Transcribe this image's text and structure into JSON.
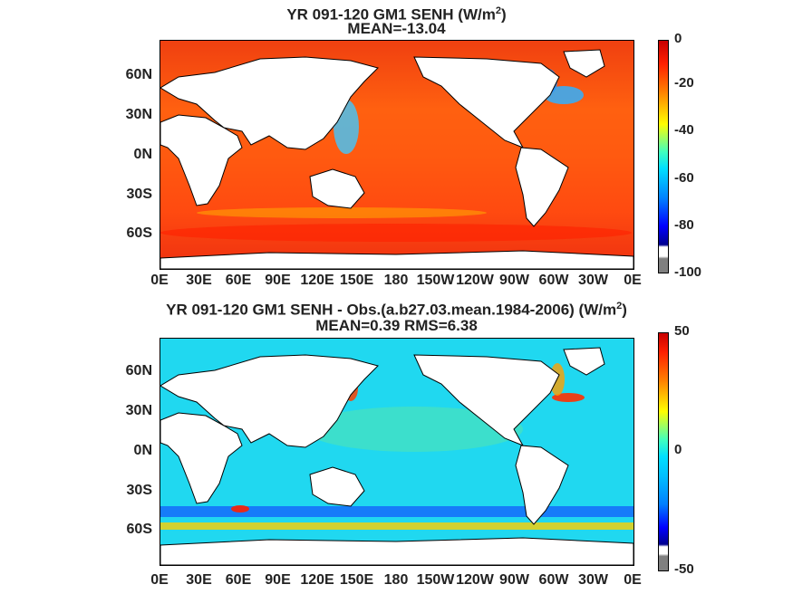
{
  "panels": [
    {
      "title_line1_prefix": "YR 091-120 GM1  SENH (W/m",
      "title_line1_sup": "2",
      "title_line1_suffix": ")",
      "title_line2": "MEAN=-13.04",
      "field": "model",
      "colorbar": {
        "ticks": [
          "0",
          "-20",
          "-40",
          "-60",
          "-80",
          "-100"
        ],
        "range": [
          -100,
          0
        ]
      }
    },
    {
      "title_line1_prefix": "YR 091-120 GM1 SENH - Obs.(a.b27.03.mean.1984-2006) (W/m",
      "title_line1_sup": "2",
      "title_line1_suffix": ")",
      "title_line2": "MEAN=0.39 RMS=6.38",
      "field": "difference",
      "colorbar": {
        "ticks": [
          "50",
          "0",
          "-50"
        ],
        "range": [
          -50,
          50
        ]
      }
    }
  ],
  "lat_labels": [
    "60N",
    "30N",
    "0N",
    "30S",
    "60S"
  ],
  "lon_labels": [
    "0E",
    "30E",
    "60E",
    "90E",
    "120E",
    "150E",
    "180",
    "150W",
    "120W",
    "90W",
    "60W",
    "30W",
    "0E"
  ],
  "colors": {
    "land": "#ffffff",
    "coastline": "#000000",
    "jet_low": "#00008f",
    "jet_mid": "#00ffff",
    "jet_high": "#ff0000",
    "missing": "#808080"
  }
}
